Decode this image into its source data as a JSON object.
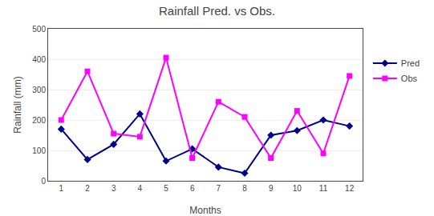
{
  "chart_data": {
    "type": "line",
    "title": "Rainfall Pred. vs Obs.",
    "xlabel": "Months",
    "ylabel": "Rainfall (mm)",
    "x": [
      1,
      2,
      3,
      4,
      5,
      6,
      7,
      8,
      9,
      10,
      11,
      12
    ],
    "series": [
      {
        "name": "Pred",
        "color": "#00008B",
        "marker": "diamond",
        "values": [
          170,
          70,
          120,
          220,
          65,
          105,
          45,
          25,
          150,
          165,
          200,
          180
        ]
      },
      {
        "name": "Obs",
        "color": "#FF00FF",
        "marker": "square",
        "values": [
          200,
          360,
          155,
          145,
          405,
          75,
          260,
          210,
          75,
          230,
          90,
          345
        ]
      }
    ],
    "xlim": [
      0.5,
      12.5
    ],
    "xticks": [
      1,
      2,
      3,
      4,
      5,
      6,
      7,
      8,
      9,
      10,
      11,
      12
    ],
    "ylim": [
      0,
      500
    ],
    "yticks": [
      0,
      100,
      200,
      300,
      400,
      500
    ],
    "grid": "y",
    "legend": "right"
  }
}
